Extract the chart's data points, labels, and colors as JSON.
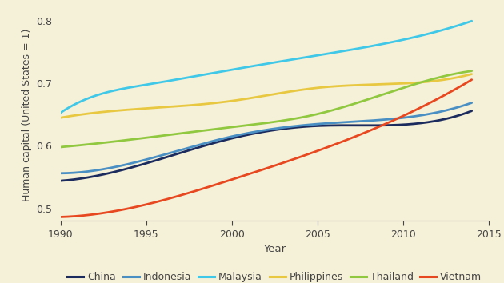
{
  "background_color": "#f5f0d8",
  "xlabel": "Year",
  "ylabel": "Human capital (United States = 1)",
  "xlim": [
    1990,
    2015
  ],
  "ylim": [
    0.48,
    0.82
  ],
  "yticks": [
    0.5,
    0.6,
    0.7,
    0.8
  ],
  "xticks": [
    1990,
    1995,
    2000,
    2005,
    2010,
    2015
  ],
  "series": {
    "China": {
      "color": "#1c2b5e",
      "years": [
        1990,
        1995,
        2000,
        2005,
        2010,
        2014
      ],
      "values": [
        0.544,
        0.572,
        0.612,
        0.632,
        0.634,
        0.656
      ]
    },
    "Indonesia": {
      "color": "#4a8fc4",
      "years": [
        1990,
        1995,
        2000,
        2005,
        2010,
        2014
      ],
      "values": [
        0.556,
        0.578,
        0.615,
        0.635,
        0.645,
        0.669
      ]
    },
    "Malaysia": {
      "color": "#40c8e8",
      "years": [
        1990,
        1992,
        1995,
        2000,
        2005,
        2010,
        2014
      ],
      "values": [
        0.653,
        0.68,
        0.698,
        0.722,
        0.745,
        0.77,
        0.8
      ]
    },
    "Philippines": {
      "color": "#e8c840",
      "years": [
        1990,
        1995,
        2000,
        2005,
        2008,
        2010,
        2014
      ],
      "values": [
        0.645,
        0.66,
        0.672,
        0.693,
        0.698,
        0.7,
        0.715
      ]
    },
    "Thailand": {
      "color": "#90c840",
      "years": [
        1990,
        1995,
        2000,
        2005,
        2010,
        2014
      ],
      "values": [
        0.598,
        0.613,
        0.63,
        0.651,
        0.693,
        0.72
      ]
    },
    "Vietnam": {
      "color": "#e84820",
      "years": [
        1990,
        1995,
        2000,
        2005,
        2010,
        2014
      ],
      "values": [
        0.486,
        0.506,
        0.546,
        0.592,
        0.648,
        0.706
      ]
    }
  },
  "legend_order": [
    "China",
    "Indonesia",
    "Malaysia",
    "Philippines",
    "Thailand",
    "Vietnam"
  ]
}
